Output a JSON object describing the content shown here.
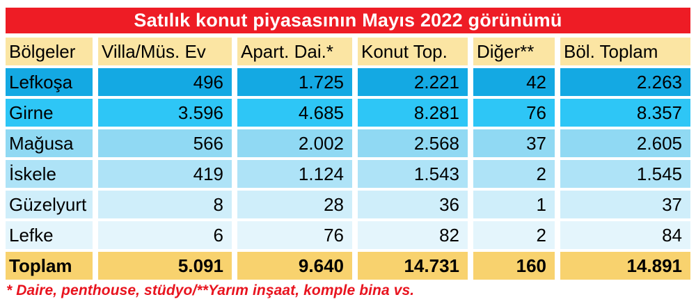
{
  "title": "Satılık konut piyasasının Mayıs 2022 görünümü",
  "colors": {
    "title_bar_red": "#ee1c25",
    "header_tan": "#fbe5a3",
    "total_gold": "#f8d26e",
    "row_blues": [
      "#14a9e3",
      "#2ec6f6",
      "#90d9f3",
      "#aee3f7",
      "#cfeefa",
      "#e4f5fc"
    ],
    "footnote_red": "#e8141f"
  },
  "table": {
    "headers": [
      "Bölgeler",
      "Villa/Müs. Ev",
      "Apart. Dai.*",
      "Konut Top.",
      "Diğer**",
      "Böl. Toplam"
    ],
    "rows": [
      {
        "region": "Lefkoşa",
        "values": [
          "496",
          "1.725",
          "2.221",
          "42",
          "2.263"
        ]
      },
      {
        "region": "Girne",
        "values": [
          "3.596",
          "4.685",
          "8.281",
          "76",
          "8.357"
        ]
      },
      {
        "region": "Mağusa",
        "values": [
          "566",
          "2.002",
          "2.568",
          "37",
          "2.605"
        ]
      },
      {
        "region": "İskele",
        "values": [
          "419",
          "1.124",
          "1.543",
          "2",
          "1.545"
        ]
      },
      {
        "region": "Güzelyurt",
        "values": [
          "8",
          "28",
          "36",
          "1",
          "37"
        ]
      },
      {
        "region": "Lefke",
        "values": [
          "6",
          "76",
          "82",
          "2",
          "84"
        ]
      }
    ],
    "total": {
      "label": "Toplam",
      "values": [
        "5.091",
        "9.640",
        "14.731",
        "160",
        "14.891"
      ]
    }
  },
  "footnote": "* Daire, penthouse, stüdyo/**Yarım inşaat, komple bina vs.",
  "chart_data": {
    "type": "table",
    "title": "Satılık konut piyasasının Mayıs 2022 görünümü",
    "columns": [
      "Bölgeler",
      "Villa/Müs. Ev",
      "Apart. Dai.*",
      "Konut Top.",
      "Diğer**",
      "Böl. Toplam"
    ],
    "rows": [
      [
        "Lefkoşa",
        496,
        1725,
        2221,
        42,
        2263
      ],
      [
        "Girne",
        3596,
        4685,
        8281,
        76,
        8357
      ],
      [
        "Mağusa",
        566,
        2002,
        2568,
        37,
        2605
      ],
      [
        "İskele",
        419,
        1124,
        1543,
        2,
        1545
      ],
      [
        "Güzelyurt",
        8,
        28,
        36,
        1,
        37
      ],
      [
        "Lefke",
        6,
        76,
        82,
        2,
        84
      ],
      [
        "Toplam",
        5091,
        9640,
        14731,
        160,
        14891
      ]
    ],
    "footnote": "* Daire, penthouse, stüdyo/**Yarım inşaat, komple bina vs."
  }
}
